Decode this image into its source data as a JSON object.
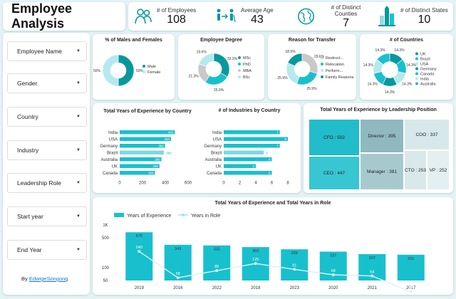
{
  "title": "Employee Analysis",
  "kpis": [
    {
      "icon": "employees-icon",
      "label": "# of Employees",
      "value": "108"
    },
    {
      "icon": "age-icon",
      "label": "Average Age",
      "value": "43"
    },
    {
      "icon": "globe-icon",
      "label": "# of Distinct Counties",
      "value": "7"
    },
    {
      "icon": "city-icon",
      "label": "# of Distinct States",
      "value": "10"
    }
  ],
  "filters": [
    "Employee Name",
    "Gender",
    "Country",
    "Industry",
    "Leadership Role",
    "Start year",
    "End Year"
  ],
  "byline": {
    "prefix": "By ",
    "author": "EdwigeSongong"
  },
  "colors": {
    "dark": "#07989e",
    "mid": "#18c0ce",
    "light": "#b4e9ef",
    "grey": "#c9c9c9",
    "bg": "#e3f4f6"
  },
  "chart_data": [
    {
      "type": "pie",
      "title": "% of Males and Females",
      "labels": [
        "Male",
        "Female"
      ],
      "values": [
        50,
        50
      ],
      "data_labels": [
        "50%",
        "50%"
      ]
    },
    {
      "type": "pie",
      "title": "Employee Degree",
      "labels": [
        "MSc",
        "PhD",
        "MBA",
        "BSc"
      ],
      "values": [
        33.3,
        25.9,
        21.3,
        19.6
      ],
      "data_labels": [
        "33.3%",
        "25.9%",
        "21.3%",
        "19.6%"
      ]
    },
    {
      "type": "pie",
      "title": "Reason for Transfer",
      "labels": [
        "Restruct...",
        "Relocation",
        "Perform...",
        "Family Reasons"
      ],
      "values": [
        29.6,
        25.9,
        25.9,
        18.5
      ],
      "data_labels": [
        "29.6%",
        "25.9%",
        "25.9%",
        "18.5%"
      ]
    },
    {
      "type": "pie",
      "title": "# of Countries",
      "labels": [
        "UK",
        "Brazil",
        "USA",
        "Germany",
        "Canada",
        "India",
        "Australia"
      ],
      "values": [
        14.3,
        14.3,
        14.3,
        14.3,
        14.3,
        14.3,
        14.3
      ],
      "data_labels": [
        "14.3%",
        "14.3%",
        "14.3%",
        "14.3%",
        "14.3%",
        "14.3%",
        "14.3%"
      ]
    },
    {
      "type": "bar",
      "orientation": "horizontal",
      "title": "Total Years of Experience by Country",
      "categories": [
        "India",
        "USA",
        "Germany",
        "Brazil",
        "Australia",
        "UK",
        "Canada"
      ],
      "values": [
        483,
        450,
        398,
        388,
        366,
        349,
        309
      ],
      "xlim": [
        0,
        600
      ],
      "xticks": [
        "0",
        "200",
        "400",
        "600"
      ]
    },
    {
      "type": "bar",
      "orientation": "horizontal",
      "title": "# of Industries by Country",
      "categories": [
        "India",
        "USA",
        "Germany",
        "Brazil",
        "Australia",
        "UK",
        "Canada"
      ],
      "values": [
        7,
        8,
        7,
        5,
        6,
        4,
        6
      ],
      "xlim": [
        0,
        8
      ],
      "xticks": [
        "0",
        "2",
        "4",
        "6",
        "8"
      ]
    },
    {
      "type": "heatmap",
      "title": "Total Years of Experience by Leadership Position",
      "labels": [
        "CFO",
        "CEO",
        "Director",
        "Manager",
        "COO",
        "CTO",
        "VP"
      ],
      "values": [
        502,
        447,
        395,
        381,
        337,
        253,
        252
      ],
      "data_labels": [
        "CFO : 502",
        "CEO : 447",
        "Director : 395",
        "Manager : 381",
        "COO : 337",
        "CTO : 253",
        "VP : 252"
      ]
    },
    {
      "type": "bar",
      "title": "Total Years of Experience and Total Years in Role",
      "categories": [
        "2019",
        "2016",
        "2022",
        "2018",
        "2023",
        "2020",
        "2021",
        "2017"
      ],
      "series": [
        {
          "name": "Years of Experience",
          "type": "bar",
          "values": [
            675,
            343,
            332,
            303,
            269,
            237,
            207,
            201
          ]
        },
        {
          "name": "Years in Role",
          "type": "line",
          "values": [
            240,
            58,
            85,
            125,
            91,
            68,
            64,
            27
          ]
        }
      ],
      "yscale": "log",
      "yticks": [
        "1K",
        "500",
        "100",
        "50"
      ]
    }
  ]
}
